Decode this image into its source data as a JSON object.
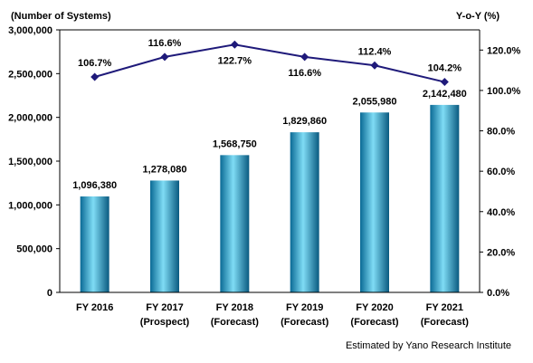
{
  "chart_data": {
    "type": "bar",
    "categories": [
      [
        "FY 2016"
      ],
      [
        "FY 2017",
        "(Prospect)"
      ],
      [
        "FY 2018",
        "(Forecast)"
      ],
      [
        "FY 2019",
        "(Forecast)"
      ],
      [
        "FY 2020",
        "(Forecast)"
      ],
      [
        "FY 2021",
        "(Forecast)"
      ]
    ],
    "series": [
      {
        "type": "bar",
        "axis": "left",
        "values": [
          1096380,
          1278080,
          1568750,
          1829860,
          2055980,
          2142480
        ],
        "labels": [
          "1,096,380",
          "1,278,080",
          "1,568,750",
          "1,829,860",
          "2,055,980",
          "2,142,480"
        ]
      },
      {
        "type": "line",
        "axis": "right",
        "values": [
          106.7,
          116.6,
          122.7,
          116.6,
          112.4,
          104.2
        ],
        "labels": [
          "106.7%",
          "116.6%",
          "122.7%",
          "116.6%",
          "112.4%",
          "104.2%"
        ]
      }
    ],
    "ylabel": "(Number of  Systems)",
    "ylabel_right": "Y-o-Y (%)",
    "ylim": [
      0,
      3000000
    ],
    "ylim_right": [
      0,
      130
    ],
    "yticks": [
      "0",
      "500,000",
      "1,000,000",
      "1,500,000",
      "2,000,000",
      "2,500,000",
      "3,000,000"
    ],
    "yticks_right": [
      "0.0%",
      "20.0%",
      "40.0%",
      "60.0%",
      "80.0%",
      "100.0%",
      "120.0%"
    ],
    "grid": false,
    "colors": {
      "bar_light": "#7fdcf5",
      "bar_mid": "#1cb0e0",
      "bar_dark": "#0a5a80",
      "line": "#1f1a7a"
    }
  },
  "footer": {
    "credit": "Estimated by Yano Research Institute"
  }
}
